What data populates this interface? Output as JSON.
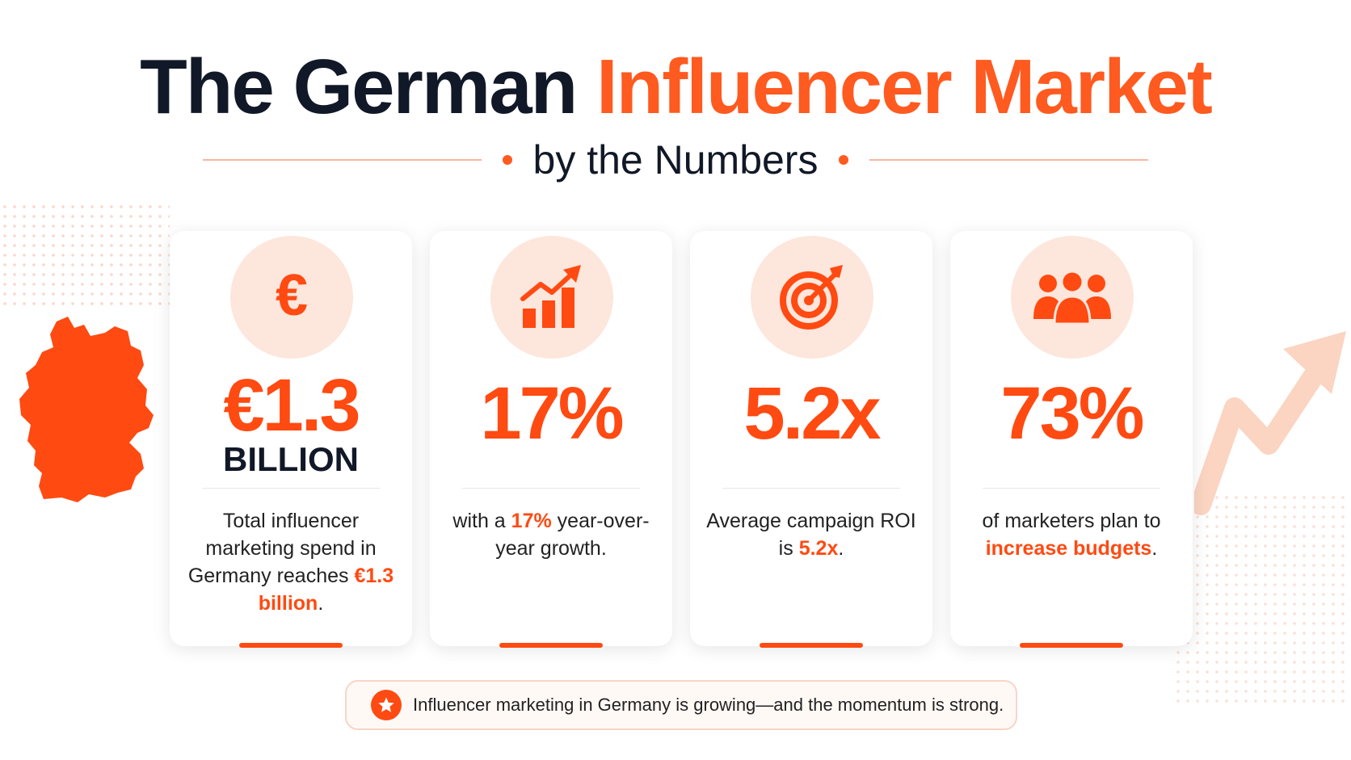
{
  "title": {
    "part1": "The German",
    "part2": "Influencer Market",
    "subtitle": "by the Numbers"
  },
  "colors": {
    "accent": "#ff4a12",
    "dark": "#111827",
    "soft": "#fde6db"
  },
  "stats": [
    {
      "icon": "euro-icon",
      "value": "€1.3",
      "value_sub": "BILLION",
      "desc_pre": "Total influencer marketing spend in Germany reaches",
      "desc_hl": "€1.3 billion",
      "desc_post": "."
    },
    {
      "icon": "growth-chart-icon",
      "value": "17%",
      "desc_pre": "with a",
      "desc_hl": "17%",
      "desc_post": "year-over-year growth."
    },
    {
      "icon": "target-icon",
      "value": "5.2x",
      "desc_pre": "Average campaign ROI is",
      "desc_hl": "5.2x",
      "desc_post": "."
    },
    {
      "icon": "people-group-icon",
      "value": "73%",
      "desc_pre": "of marketers plan to",
      "desc_hl": "increase budgets",
      "desc_post": "."
    }
  ],
  "footer": {
    "icon": "star-icon",
    "text": "Influencer marketing in Germany is growing—and the momentum is strong."
  }
}
